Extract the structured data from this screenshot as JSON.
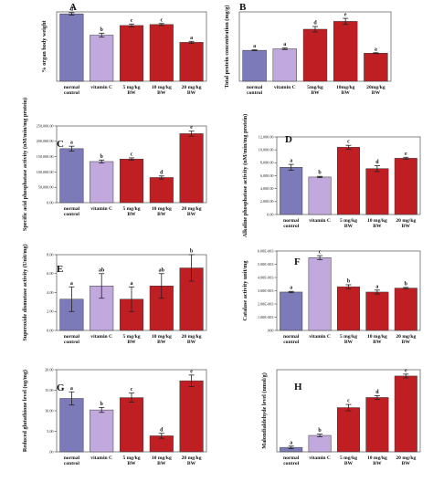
{
  "colors": {
    "normal": "#7c7ab8",
    "vitc": "#c2a9dd",
    "treated": "#bf1e23",
    "edge": "#3a3a3a",
    "error": "#222222"
  },
  "chart_data": [
    {
      "panel": "A",
      "type": "bar",
      "ylabel": "% organ body weight",
      "categories": [
        [
          "normal",
          "control"
        ],
        [
          "vitamin C"
        ],
        [
          "5 mg/kg",
          "BW"
        ],
        [
          "10 mg/kg",
          "BW"
        ],
        [
          "20 mg/kg",
          "BW"
        ]
      ],
      "values": [
        2.72,
        1.86,
        2.25,
        2.29,
        1.57
      ],
      "errors": [
        0.05,
        0.08,
        0.06,
        0.04,
        0.04
      ],
      "letters": [
        "d",
        "b",
        "c",
        "c",
        "a"
      ],
      "ylim": [
        0,
        2.8
      ],
      "yticks": [],
      "ytick_labels": []
    },
    {
      "panel": "B",
      "type": "bar",
      "ylabel": "Total protein concentration (mg/g)",
      "categories": [
        [
          "normal",
          "control"
        ],
        [
          "vitamin C"
        ],
        [
          "5mg/kg",
          "BW"
        ],
        [
          "10mg/kg",
          "BW"
        ],
        [
          "20mg/kg",
          "BW"
        ]
      ],
      "values": [
        2.05,
        2.15,
        3.45,
        3.97,
        1.86
      ],
      "errors": [
        0.03,
        0.05,
        0.18,
        0.2,
        0.03
      ],
      "letters": [
        "a",
        "a",
        "d",
        "e",
        "a"
      ],
      "ylim": [
        0,
        4.6
      ],
      "yticks": [],
      "ytick_labels": []
    },
    {
      "panel": "C",
      "type": "bar",
      "ylabel": "Specific acid phosphatase activity (nM/min/mg protein)",
      "categories": [
        [
          "normal",
          "control"
        ],
        [
          "vitamin C"
        ],
        [
          "5 mg/kg",
          "BW"
        ],
        [
          "10 mg/kg",
          "BW"
        ],
        [
          "20 mg/kg",
          "BW"
        ]
      ],
      "values": [
        176000,
        134000,
        142000,
        82000,
        225000
      ],
      "errors": [
        8000,
        5000,
        4000,
        5000,
        8000
      ],
      "letters": [
        "a",
        "b",
        "c",
        "d",
        "e"
      ],
      "ylim": [
        0,
        250000
      ],
      "yticks": [
        0,
        50000,
        100000,
        150000,
        200000,
        250000
      ],
      "ytick_labels": [
        "0.00",
        "50,000.00",
        "100,000.00",
        "150,000.00",
        "200,000.00",
        "250,000.00"
      ]
    },
    {
      "panel": "D",
      "type": "bar",
      "ylabel": "Alkaline phosphatase activity (nM/min/mg protein)",
      "categories": [
        [
          "normal",
          "control"
        ],
        [
          "vitamin C"
        ],
        [
          "5 mg/kg",
          "BW"
        ],
        [
          "10 mg/kg",
          "BW"
        ],
        [
          "20 mg/kg",
          "BW"
        ]
      ],
      "values": [
        7300,
        5800,
        10400,
        7100,
        8700
      ],
      "errors": [
        450,
        100,
        300,
        450,
        150
      ],
      "letters": [
        "a",
        "b",
        "c",
        "d",
        "e"
      ],
      "ylim": [
        0,
        12000
      ],
      "yticks": [
        0,
        2000,
        4000,
        6000,
        8000,
        10000,
        12000
      ],
      "ytick_labels": [
        "0.00",
        "2,000.00",
        "4,000.00",
        "6,000.00",
        "8,000.00",
        "10,000.00",
        "12,000.00"
      ]
    },
    {
      "panel": "E",
      "type": "bar",
      "ylabel": "Superoxide dismutase activity (Unit/mg)",
      "categories": [
        [
          "normal",
          "control"
        ],
        [
          "vitamin C"
        ],
        [
          "5 mg/kg",
          "BW"
        ],
        [
          "10 mg/kg",
          "BW"
        ],
        [
          "20 mg/kg",
          "BW"
        ]
      ],
      "values": [
        3.3,
        4.7,
        3.3,
        4.7,
        6.6
      ],
      "errors": [
        1.3,
        1.3,
        1.3,
        1.3,
        1.4
      ],
      "letters": [
        "a",
        "ab",
        "a",
        "ab",
        "b"
      ],
      "ylim": [
        0,
        8
      ],
      "yticks": [
        0,
        2,
        4,
        6,
        8
      ],
      "ytick_labels": [
        "0.00",
        "2.00",
        "4.00",
        "6.00",
        "8.00"
      ]
    },
    {
      "panel": "F",
      "type": "bar",
      "ylabel": "Catalase activity  unit/mg",
      "categories": [
        [
          "normal",
          "control"
        ],
        [
          "vitamin C"
        ],
        [
          "5 mg/kg",
          "BW"
        ],
        [
          "10 mg/kg",
          "BW"
        ],
        [
          "20 mg/kg",
          "BW"
        ]
      ],
      "values": [
        0.0029,
        0.0055,
        0.0033,
        0.0029,
        0.0032
      ],
      "errors": [
        5e-05,
        0.00015,
        0.00015,
        0.00015,
        5e-05
      ],
      "letters": [
        "a",
        "c",
        "b",
        "a",
        "b"
      ],
      "ylim": [
        0,
        0.006
      ],
      "yticks": [
        0,
        0.001,
        0.002,
        0.003,
        0.004,
        0.005,
        0.006
      ],
      "ytick_labels": [
        ".000",
        ".1.00E-003",
        "2.00E-003",
        "3.00E-003",
        "4.00E-003",
        "5.00E-003",
        "6.00E-003"
      ]
    },
    {
      "panel": "G",
      "type": "bar",
      "ylabel": "Reduced glutathione level (ug/mg)",
      "categories": [
        [
          "normal",
          "control"
        ],
        [
          "vitamin C"
        ],
        [
          "5 mg/kg",
          "BW"
        ],
        [
          "10 mg/kg",
          "BW"
        ],
        [
          "20 mg/kg",
          "BW"
        ]
      ],
      "values": [
        13,
        10.2,
        13.2,
        3.9,
        17.3
      ],
      "errors": [
        1.6,
        0.6,
        1.1,
        0.6,
        1.4
      ],
      "letters": [
        "a",
        "b",
        "c",
        "d",
        "e"
      ],
      "ylim": [
        0,
        20
      ],
      "yticks": [
        0,
        5,
        10,
        15,
        20
      ],
      "ytick_labels": [
        ".00",
        "5.00",
        "10.00",
        "15.00",
        "20.00"
      ]
    },
    {
      "panel": "H",
      "type": "bar",
      "ylabel": "Malondialdehyde level (nmol/g)",
      "categories": [
        [
          "normal",
          "control"
        ],
        [
          "vitamin C"
        ],
        [
          "5 mg/kg",
          "BW"
        ],
        [
          "10 mg/kg",
          "BW"
        ],
        [
          "20 mg/kg",
          "BW"
        ]
      ],
      "values": [
        0.35,
        1.3,
        3.5,
        4.3,
        6.0
      ],
      "errors": [
        0.1,
        0.1,
        0.25,
        0.15,
        0.15
      ],
      "letters": [
        "a",
        "b",
        "c",
        "d",
        "e"
      ],
      "ylim": [
        0,
        6.5
      ],
      "yticks": [],
      "ytick_labels": []
    }
  ]
}
